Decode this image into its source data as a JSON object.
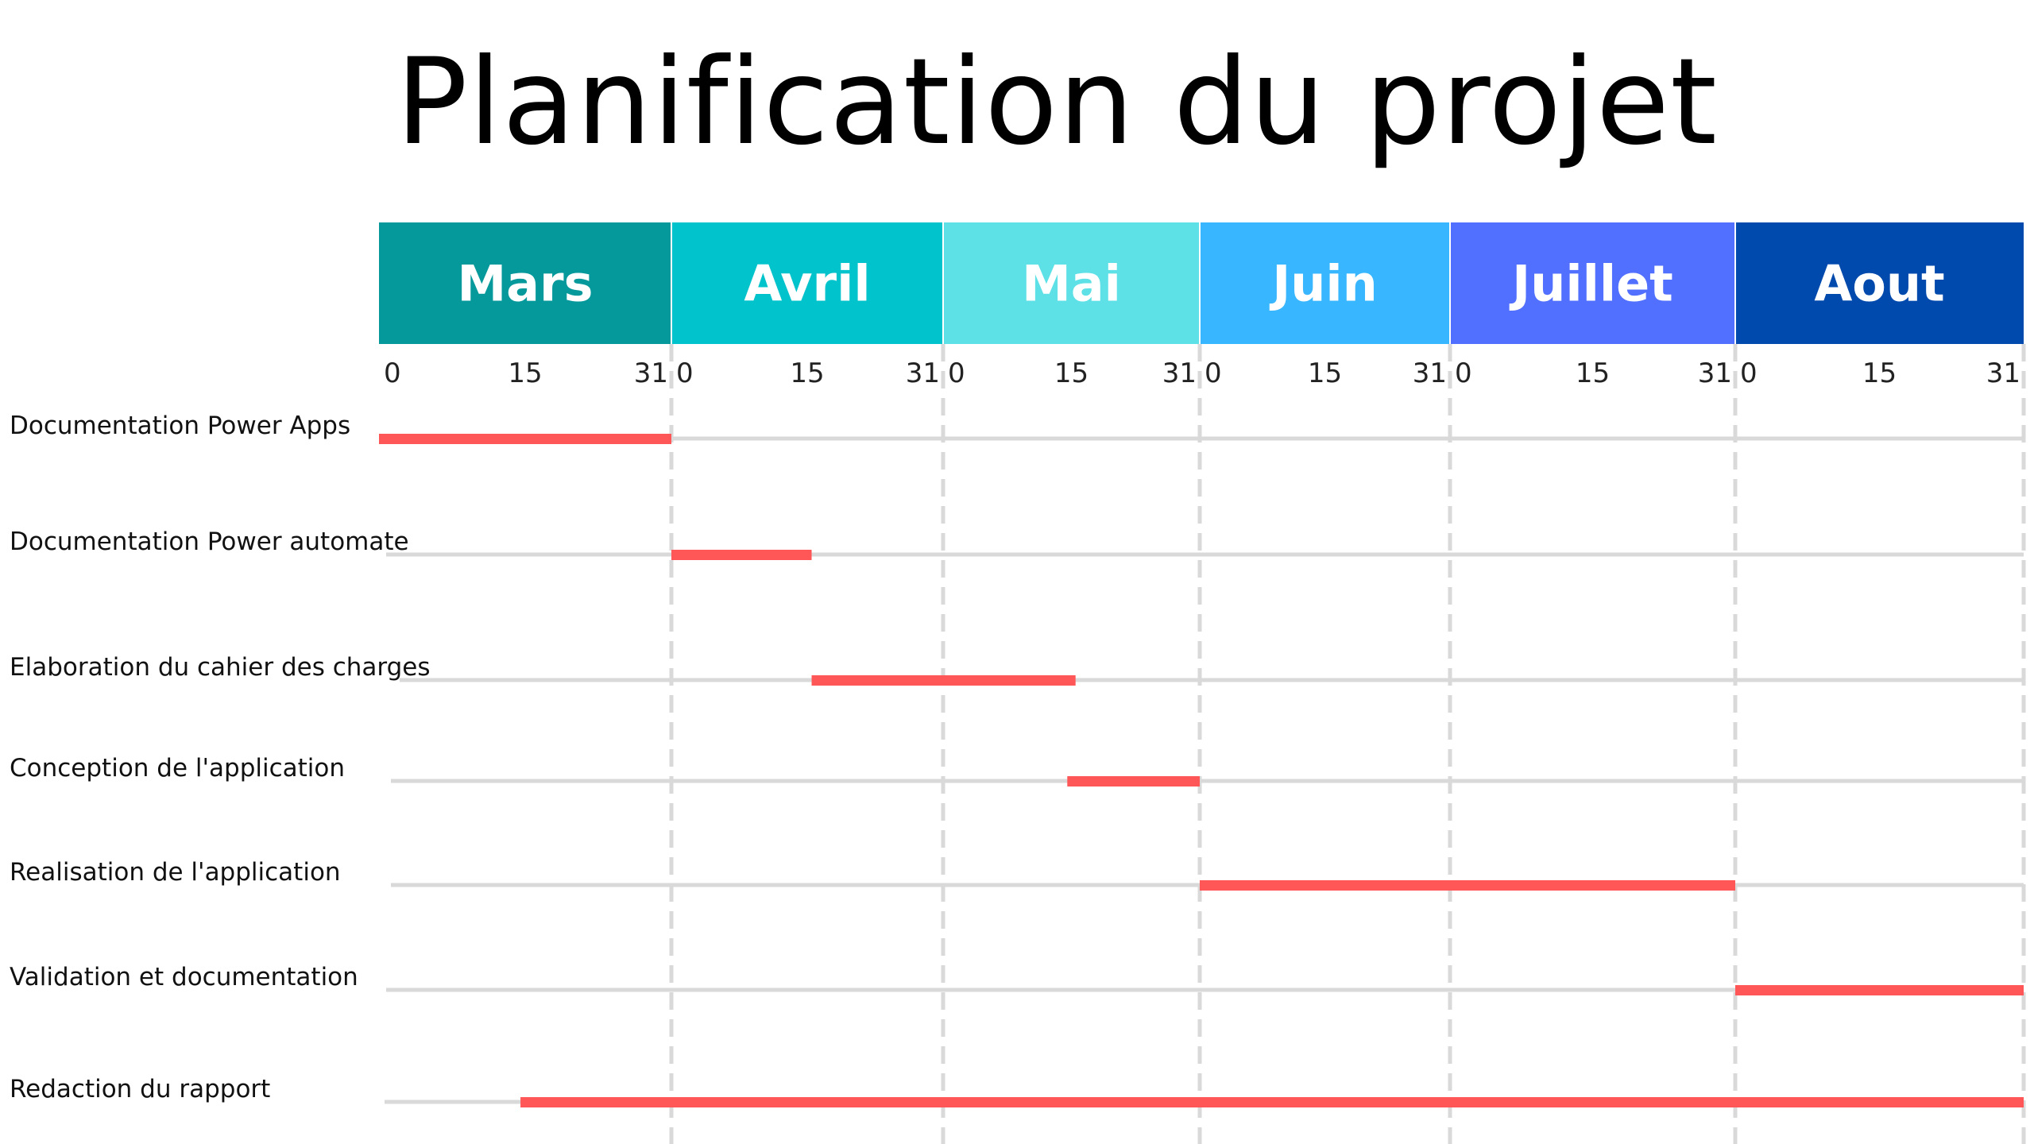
{
  "title": "Planification du projet",
  "months": [
    {
      "label": "Mars",
      "color": "#06999b"
    },
    {
      "label": "Avril",
      "color": "#00c3cb"
    },
    {
      "label": "Mai",
      "color": "#5ee1e6"
    },
    {
      "label": "Juin",
      "color": "#38b6ff"
    },
    {
      "label": "Juillet",
      "color": "#5170ff"
    },
    {
      "label": "Aout",
      "color": "#004aad"
    }
  ],
  "day_ticks": [
    "0",
    "15",
    "31"
  ],
  "bar_color": "#ff5757",
  "tasks": [
    {
      "label": "Documentation Power Apps",
      "start": "Mars 0",
      "end": "Mars 31"
    },
    {
      "label": "Documentation Power automate",
      "start": "Avril 0",
      "end": "Avril 16"
    },
    {
      "label": "Elaboration du cahier des charges",
      "start": "Avril 16",
      "end": "Mai 16"
    },
    {
      "label": "Conception de l'application",
      "start": "Mai 15",
      "end": "Mai 31"
    },
    {
      "label": "Realisation de l'application",
      "start": "Juin 0",
      "end": "Juillet 31"
    },
    {
      "label": "Validation et documentation",
      "start": "Aout 0",
      "end": "Aout 31"
    },
    {
      "label": "Redaction du rapport",
      "start": "Mars 15",
      "end": "Aout 31"
    }
  ]
}
